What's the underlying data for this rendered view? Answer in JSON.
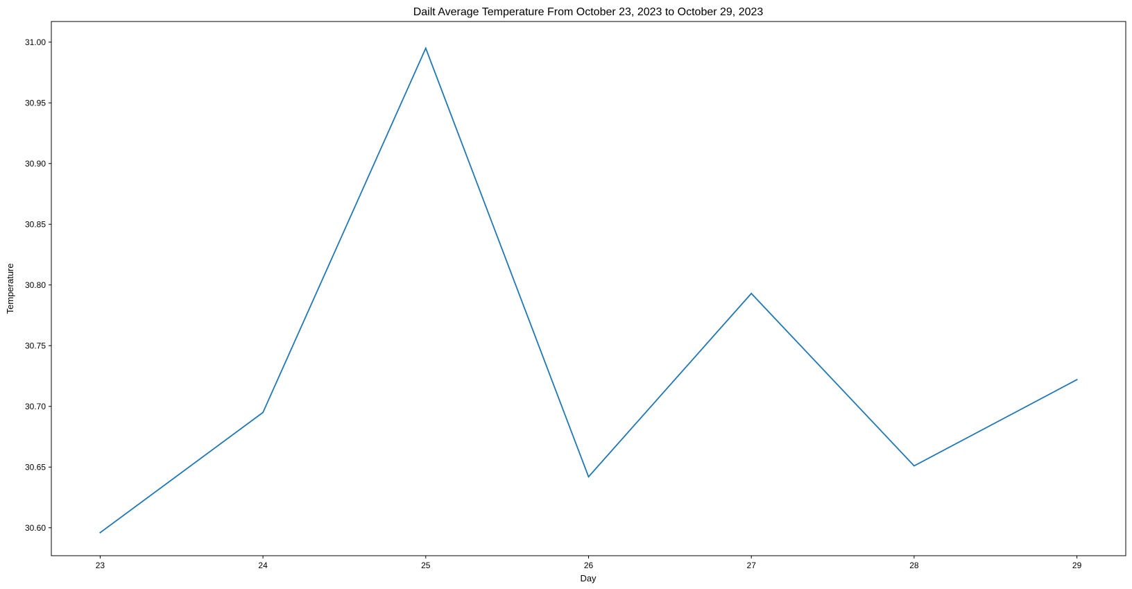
{
  "chart_data": {
    "type": "line",
    "title": "Dailt Average Temperature From October 23, 2023 to October 29, 2023",
    "xlabel": "Day",
    "ylabel": "Temperature",
    "x": [
      23,
      24,
      25,
      26,
      27,
      28,
      29
    ],
    "xticks": [
      "23",
      "24",
      "25",
      "26",
      "27",
      "28",
      "29"
    ],
    "yticks": [
      "30.60",
      "30.65",
      "30.70",
      "30.75",
      "30.80",
      "30.85",
      "30.90",
      "30.95",
      "31.00"
    ],
    "ylim": [
      30.577,
      31.017
    ],
    "xlim": [
      22.7,
      29.3
    ],
    "grid": false,
    "series": [
      {
        "values": [
          30.596,
          30.695,
          30.995,
          30.642,
          30.793,
          30.651,
          30.722
        ],
        "color": "#1f77b4"
      }
    ]
  }
}
